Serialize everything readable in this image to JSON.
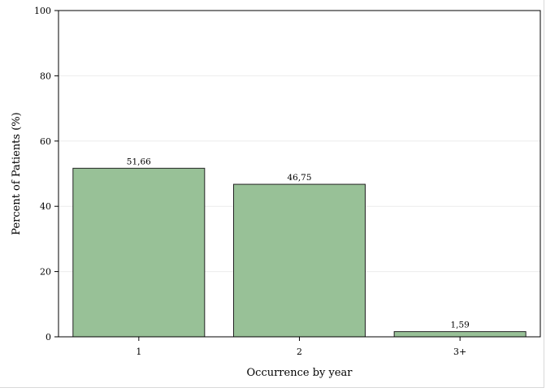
{
  "chart_data": {
    "type": "bar",
    "categories": [
      "1",
      "2",
      "3+"
    ],
    "values": [
      51.66,
      46.75,
      1.59
    ],
    "value_labels": [
      "51,66",
      "46,75",
      "1,59"
    ],
    "title": "",
    "xlabel": "Occurrence by year",
    "ylabel": "Percent of Patients (%)",
    "ylim": [
      0,
      100
    ],
    "yticks": [
      0,
      20,
      40,
      60,
      80,
      100
    ],
    "grid": true,
    "legend": "none",
    "bar_color": "#98c197",
    "bar_edge_color": "#222222"
  }
}
